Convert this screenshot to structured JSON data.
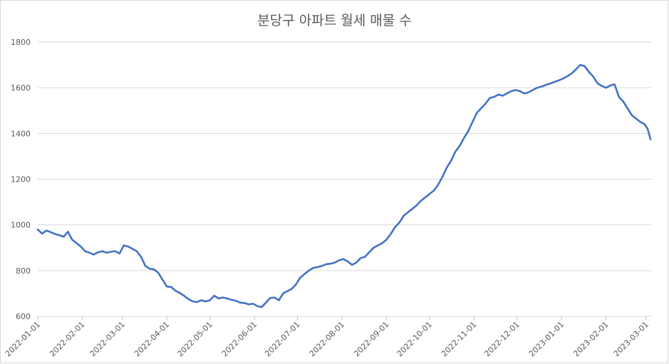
{
  "chart_data": {
    "type": "line",
    "title": "분당구 아파트 월세 매물 수",
    "xlabel": "",
    "ylabel": "",
    "ylim": [
      600,
      1800
    ],
    "yticks": [
      600,
      800,
      1000,
      1200,
      1400,
      1600,
      1800
    ],
    "xlim": [
      "2022-01-01",
      "2023-03-05"
    ],
    "xticks": [
      "2022-01-01",
      "2022-02-01",
      "2022-03-01",
      "2022-04-01",
      "2022-05-01",
      "2022-06-01",
      "2022-07-01",
      "2022-08-01",
      "2022-09-01",
      "2022-10-01",
      "2022-11-01",
      "2022-12-01",
      "2023-01-01",
      "2023-02-01",
      "2023-03-01"
    ],
    "grid": true,
    "legend": "none",
    "color": "#4472C4",
    "series": [
      {
        "x": [
          "2022-01-01",
          "2022-01-04",
          "2022-01-07",
          "2022-01-10",
          "2022-01-13",
          "2022-01-16",
          "2022-01-19",
          "2022-01-22",
          "2022-01-25",
          "2022-01-28",
          "2022-01-31",
          "2022-02-03",
          "2022-02-06",
          "2022-02-09",
          "2022-02-12",
          "2022-02-15",
          "2022-02-18",
          "2022-02-21",
          "2022-02-24",
          "2022-02-27",
          "2022-03-02",
          "2022-03-05",
          "2022-03-08",
          "2022-03-11",
          "2022-03-14",
          "2022-03-17",
          "2022-03-20",
          "2022-03-23",
          "2022-03-26",
          "2022-03-29",
          "2022-04-01",
          "2022-04-04",
          "2022-04-07",
          "2022-04-10",
          "2022-04-13",
          "2022-04-16",
          "2022-04-19",
          "2022-04-22",
          "2022-04-25",
          "2022-04-28",
          "2022-05-01",
          "2022-05-04",
          "2022-05-07",
          "2022-05-10",
          "2022-05-13",
          "2022-05-16",
          "2022-05-19",
          "2022-05-22",
          "2022-05-25",
          "2022-05-28",
          "2022-05-31",
          "2022-06-03",
          "2022-06-06",
          "2022-06-09",
          "2022-06-12",
          "2022-06-15",
          "2022-06-18",
          "2022-06-21",
          "2022-06-24",
          "2022-06-27",
          "2022-06-30",
          "2022-07-03",
          "2022-07-06",
          "2022-07-09",
          "2022-07-12",
          "2022-07-15",
          "2022-07-18",
          "2022-07-21",
          "2022-07-24",
          "2022-07-27",
          "2022-07-30",
          "2022-08-02",
          "2022-08-05",
          "2022-08-08",
          "2022-08-11",
          "2022-08-14",
          "2022-08-17",
          "2022-08-20",
          "2022-08-23",
          "2022-08-26",
          "2022-08-29",
          "2022-09-01",
          "2022-09-04",
          "2022-09-07",
          "2022-09-10",
          "2022-09-13",
          "2022-09-16",
          "2022-09-19",
          "2022-09-22",
          "2022-09-25",
          "2022-09-28",
          "2022-10-01",
          "2022-10-04",
          "2022-10-07",
          "2022-10-10",
          "2022-10-13",
          "2022-10-16",
          "2022-10-19",
          "2022-10-22",
          "2022-10-25",
          "2022-10-28",
          "2022-10-31",
          "2022-11-03",
          "2022-11-06",
          "2022-11-09",
          "2022-11-12",
          "2022-11-15",
          "2022-11-18",
          "2022-11-21",
          "2022-11-24",
          "2022-11-27",
          "2022-11-30",
          "2022-12-03",
          "2022-12-06",
          "2022-12-09",
          "2022-12-12",
          "2022-12-15",
          "2022-12-18",
          "2022-12-21",
          "2022-12-24",
          "2022-12-27",
          "2022-12-30",
          "2023-01-02",
          "2023-01-05",
          "2023-01-08",
          "2023-01-11",
          "2023-01-14",
          "2023-01-17",
          "2023-01-20",
          "2023-01-23",
          "2023-01-26",
          "2023-01-29",
          "2023-02-01",
          "2023-02-04",
          "2023-02-07",
          "2023-02-10",
          "2023-02-13",
          "2023-02-16",
          "2023-02-19",
          "2023-02-22",
          "2023-02-25",
          "2023-02-28",
          "2023-03-02",
          "2023-03-04"
        ],
        "values": [
          980,
          962,
          975,
          968,
          960,
          955,
          948,
          970,
          935,
          920,
          905,
          885,
          878,
          870,
          880,
          885,
          878,
          882,
          885,
          875,
          910,
          905,
          895,
          885,
          860,
          820,
          808,
          805,
          790,
          760,
          730,
          728,
          712,
          702,
          690,
          675,
          665,
          662,
          670,
          665,
          670,
          690,
          678,
          682,
          678,
          672,
          668,
          660,
          658,
          652,
          655,
          645,
          640,
          660,
          680,
          682,
          670,
          700,
          710,
          720,
          740,
          770,
          785,
          800,
          812,
          815,
          820,
          828,
          830,
          835,
          845,
          850,
          840,
          825,
          835,
          855,
          860,
          880,
          900,
          910,
          920,
          935,
          960,
          990,
          1010,
          1040,
          1055,
          1070,
          1085,
          1105,
          1120,
          1135,
          1150,
          1175,
          1210,
          1250,
          1280,
          1320,
          1345,
          1380,
          1410,
          1450,
          1490,
          1510,
          1530,
          1555,
          1560,
          1570,
          1565,
          1575,
          1585,
          1590,
          1585,
          1575,
          1580,
          1590,
          1600,
          1605,
          1612,
          1618,
          1625,
          1632,
          1640,
          1650,
          1662,
          1680,
          1700,
          1695,
          1670,
          1650,
          1620,
          1608,
          1600,
          1610,
          1615,
          1560,
          1540,
          1510,
          1480,
          1465,
          1450,
          1440,
          1420,
          1375
        ]
      }
    ]
  }
}
